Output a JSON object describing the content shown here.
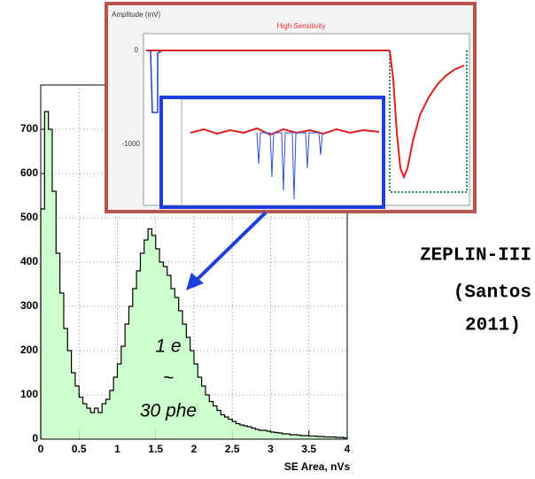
{
  "chart_data": {
    "type": "histogram",
    "xlabel": "SE Area, nVs",
    "bins": [
      0,
      0.05,
      0.1,
      0.15,
      0.2,
      0.25,
      0.3,
      0.35,
      0.4,
      0.45,
      0.5,
      0.55,
      0.6,
      0.65,
      0.7,
      0.75,
      0.8,
      0.85,
      0.9,
      0.95,
      1,
      1.05,
      1.1,
      1.15,
      1.2,
      1.25,
      1.3,
      1.35,
      1.4,
      1.45,
      1.5,
      1.55,
      1.6,
      1.65,
      1.7,
      1.75,
      1.8,
      1.85,
      1.9,
      1.95,
      2,
      2.05,
      2.1,
      2.15,
      2.2,
      2.25,
      2.3,
      2.35,
      2.4,
      2.45,
      2.5,
      2.55,
      2.6,
      2.65,
      2.7,
      2.75,
      2.8,
      2.85,
      2.9,
      2.95,
      3,
      3.05,
      3.1,
      3.15,
      3.2,
      3.25,
      3.3,
      3.35,
      3.4,
      3.45,
      3.5,
      3.55,
      3.6,
      3.65,
      3.7,
      3.75,
      3.8,
      3.85,
      3.9,
      3.95,
      4
    ],
    "values": [
      520,
      740,
      700,
      560,
      420,
      330,
      250,
      200,
      150,
      120,
      95,
      80,
      70,
      60,
      70,
      60,
      80,
      90,
      110,
      140,
      170,
      210,
      260,
      300,
      340,
      380,
      420,
      450,
      475,
      460,
      430,
      400,
      390,
      370,
      340,
      320,
      290,
      260,
      230,
      200,
      170,
      140,
      120,
      100,
      85,
      75,
      65,
      55,
      50,
      45,
      40,
      35,
      32,
      30,
      28,
      25,
      22,
      20,
      20,
      18,
      16,
      15,
      14,
      12,
      12,
      10,
      10,
      9,
      8,
      8,
      7,
      7,
      6,
      6,
      5,
      5,
      5,
      4,
      4,
      3
    ],
    "color": "#ccffcc",
    "xlim": [
      0,
      4
    ],
    "xticks": [
      0,
      0.5,
      1,
      1.5,
      2,
      2.5,
      3,
      3.5,
      4
    ],
    "ylim": [
      0,
      800
    ],
    "yticks": [
      0,
      100,
      200,
      300,
      400,
      500,
      600,
      700
    ],
    "grid": true,
    "annotations": {
      "label_1": "1 e",
      "label_2": "~",
      "label_3": "30 phe"
    }
  },
  "side_text": [
    "ZEPLIN-III",
    "(Santos",
    "2011)"
  ],
  "inset": {
    "ylabel": "Amplitude (mV)",
    "title": "High Sensitivity",
    "yticks": [
      "0",
      "-1000"
    ]
  }
}
